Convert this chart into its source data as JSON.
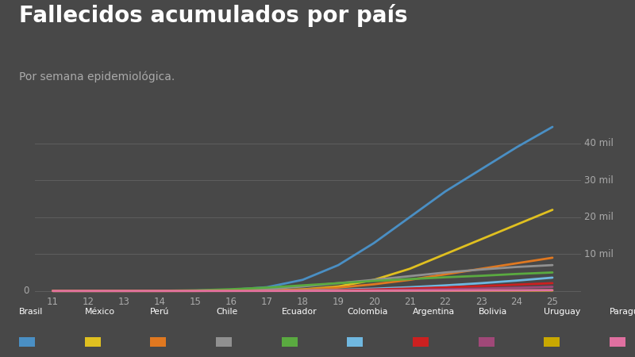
{
  "title": "Fallecidos acumulados por país",
  "subtitle": "Por semana epidemiológica.",
  "background_color": "#484848",
  "title_color": "#ffffff",
  "subtitle_color": "#aaaaaa",
  "grid_color": "#5e5e5e",
  "tick_color": "#aaaaaa",
  "x_ticks": [
    11,
    12,
    13,
    14,
    15,
    16,
    17,
    18,
    19,
    20,
    21,
    22,
    23,
    24,
    25
  ],
  "y_ticks": [
    0,
    10000,
    20000,
    30000,
    40000
  ],
  "y_tick_labels": [
    "0",
    "10 mil",
    "20 mil",
    "30 mil",
    "40 mil"
  ],
  "ylim": [
    -500,
    46000
  ],
  "countries": [
    "Brasil",
    "México",
    "Perú",
    "Chile",
    "Ecuador",
    "Colombia",
    "Argentina",
    "Bolivia",
    "Uruguay",
    "Paraguay"
  ],
  "colors": [
    "#4a8fc4",
    "#e0c020",
    "#e07820",
    "#909090",
    "#5aaa40",
    "#70b8e0",
    "#cc2020",
    "#a04878",
    "#c8a800",
    "#e070a0"
  ],
  "series": {
    "Brasil": [
      0,
      0,
      5,
      20,
      80,
      300,
      1000,
      3000,
      7000,
      13000,
      20000,
      27000,
      33000,
      39000,
      44500
    ],
    "México": [
      0,
      0,
      0,
      0,
      5,
      30,
      100,
      400,
      1200,
      3000,
      6000,
      10000,
      14000,
      18000,
      22000
    ],
    "Perú": [
      0,
      0,
      0,
      0,
      5,
      30,
      100,
      350,
      900,
      1800,
      3000,
      4500,
      6000,
      7500,
      9000
    ],
    "Chile": [
      0,
      0,
      0,
      5,
      30,
      150,
      500,
      1200,
      2100,
      3000,
      4000,
      5000,
      5800,
      6500,
      7000
    ],
    "Ecuador": [
      0,
      0,
      5,
      30,
      150,
      450,
      900,
      1500,
      2100,
      2700,
      3200,
      3700,
      4100,
      4600,
      5000
    ],
    "Colombia": [
      0,
      0,
      0,
      0,
      2,
      10,
      40,
      120,
      300,
      600,
      1000,
      1500,
      2100,
      2800,
      3600
    ],
    "Argentina": [
      0,
      0,
      0,
      0,
      2,
      8,
      25,
      70,
      180,
      380,
      650,
      950,
      1300,
      1700,
      2100
    ],
    "Bolivia": [
      0,
      0,
      0,
      0,
      0,
      3,
      10,
      30,
      80,
      160,
      280,
      430,
      620,
      850,
      1100
    ],
    "Uruguay": [
      0,
      0,
      0,
      0,
      0,
      0,
      2,
      8,
      18,
      30,
      45,
      60,
      75,
      90,
      110
    ],
    "Paraguay": [
      0,
      0,
      0,
      0,
      0,
      1,
      4,
      10,
      20,
      35,
      55,
      80,
      110,
      150,
      200
    ]
  },
  "legend_colors": [
    "#4a8fc4",
    "#e0c020",
    "#e07820",
    "#909090",
    "#5aaa40",
    "#70b8e0",
    "#cc2020",
    "#a04878",
    "#c8a800",
    "#e070a0"
  ]
}
